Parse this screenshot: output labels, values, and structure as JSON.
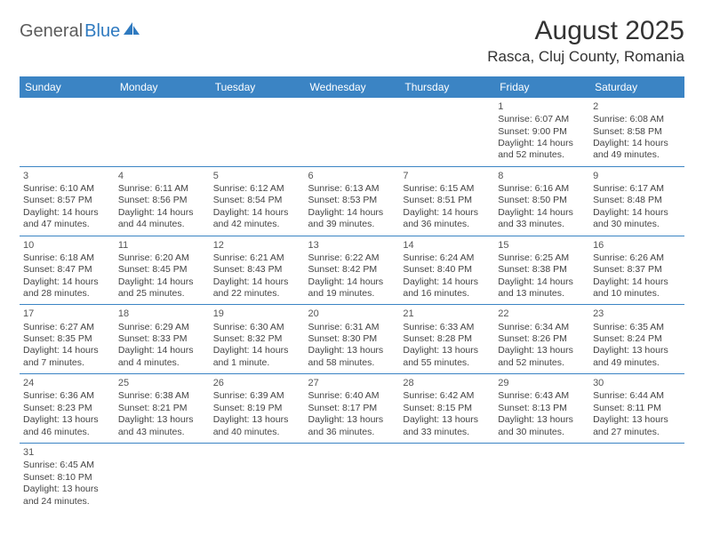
{
  "logo": {
    "part1": "General",
    "part2": "Blue"
  },
  "title": "August 2025",
  "location": "Rasca, Cluj County, Romania",
  "colors": {
    "header_bg": "#3b84c4",
    "header_text": "#ffffff",
    "border": "#3b84c4",
    "logo_gray": "#5c5c5c",
    "logo_blue": "#2f7ac0",
    "body_text": "#444444",
    "title_text": "#333333"
  },
  "typography": {
    "title_fontsize": 30,
    "location_fontsize": 17,
    "dayheader_fontsize": 12,
    "cell_fontsize": 10.5,
    "logo_fontsize": 20
  },
  "day_headers": [
    "Sunday",
    "Monday",
    "Tuesday",
    "Wednesday",
    "Thursday",
    "Friday",
    "Saturday"
  ],
  "weeks": [
    [
      null,
      null,
      null,
      null,
      null,
      {
        "day": "1",
        "sunrise": "Sunrise: 6:07 AM",
        "sunset": "Sunset: 9:00 PM",
        "daylight": "Daylight: 14 hours and 52 minutes."
      },
      {
        "day": "2",
        "sunrise": "Sunrise: 6:08 AM",
        "sunset": "Sunset: 8:58 PM",
        "daylight": "Daylight: 14 hours and 49 minutes."
      }
    ],
    [
      {
        "day": "3",
        "sunrise": "Sunrise: 6:10 AM",
        "sunset": "Sunset: 8:57 PM",
        "daylight": "Daylight: 14 hours and 47 minutes."
      },
      {
        "day": "4",
        "sunrise": "Sunrise: 6:11 AM",
        "sunset": "Sunset: 8:56 PM",
        "daylight": "Daylight: 14 hours and 44 minutes."
      },
      {
        "day": "5",
        "sunrise": "Sunrise: 6:12 AM",
        "sunset": "Sunset: 8:54 PM",
        "daylight": "Daylight: 14 hours and 42 minutes."
      },
      {
        "day": "6",
        "sunrise": "Sunrise: 6:13 AM",
        "sunset": "Sunset: 8:53 PM",
        "daylight": "Daylight: 14 hours and 39 minutes."
      },
      {
        "day": "7",
        "sunrise": "Sunrise: 6:15 AM",
        "sunset": "Sunset: 8:51 PM",
        "daylight": "Daylight: 14 hours and 36 minutes."
      },
      {
        "day": "8",
        "sunrise": "Sunrise: 6:16 AM",
        "sunset": "Sunset: 8:50 PM",
        "daylight": "Daylight: 14 hours and 33 minutes."
      },
      {
        "day": "9",
        "sunrise": "Sunrise: 6:17 AM",
        "sunset": "Sunset: 8:48 PM",
        "daylight": "Daylight: 14 hours and 30 minutes."
      }
    ],
    [
      {
        "day": "10",
        "sunrise": "Sunrise: 6:18 AM",
        "sunset": "Sunset: 8:47 PM",
        "daylight": "Daylight: 14 hours and 28 minutes."
      },
      {
        "day": "11",
        "sunrise": "Sunrise: 6:20 AM",
        "sunset": "Sunset: 8:45 PM",
        "daylight": "Daylight: 14 hours and 25 minutes."
      },
      {
        "day": "12",
        "sunrise": "Sunrise: 6:21 AM",
        "sunset": "Sunset: 8:43 PM",
        "daylight": "Daylight: 14 hours and 22 minutes."
      },
      {
        "day": "13",
        "sunrise": "Sunrise: 6:22 AM",
        "sunset": "Sunset: 8:42 PM",
        "daylight": "Daylight: 14 hours and 19 minutes."
      },
      {
        "day": "14",
        "sunrise": "Sunrise: 6:24 AM",
        "sunset": "Sunset: 8:40 PM",
        "daylight": "Daylight: 14 hours and 16 minutes."
      },
      {
        "day": "15",
        "sunrise": "Sunrise: 6:25 AM",
        "sunset": "Sunset: 8:38 PM",
        "daylight": "Daylight: 14 hours and 13 minutes."
      },
      {
        "day": "16",
        "sunrise": "Sunrise: 6:26 AM",
        "sunset": "Sunset: 8:37 PM",
        "daylight": "Daylight: 14 hours and 10 minutes."
      }
    ],
    [
      {
        "day": "17",
        "sunrise": "Sunrise: 6:27 AM",
        "sunset": "Sunset: 8:35 PM",
        "daylight": "Daylight: 14 hours and 7 minutes."
      },
      {
        "day": "18",
        "sunrise": "Sunrise: 6:29 AM",
        "sunset": "Sunset: 8:33 PM",
        "daylight": "Daylight: 14 hours and 4 minutes."
      },
      {
        "day": "19",
        "sunrise": "Sunrise: 6:30 AM",
        "sunset": "Sunset: 8:32 PM",
        "daylight": "Daylight: 14 hours and 1 minute."
      },
      {
        "day": "20",
        "sunrise": "Sunrise: 6:31 AM",
        "sunset": "Sunset: 8:30 PM",
        "daylight": "Daylight: 13 hours and 58 minutes."
      },
      {
        "day": "21",
        "sunrise": "Sunrise: 6:33 AM",
        "sunset": "Sunset: 8:28 PM",
        "daylight": "Daylight: 13 hours and 55 minutes."
      },
      {
        "day": "22",
        "sunrise": "Sunrise: 6:34 AM",
        "sunset": "Sunset: 8:26 PM",
        "daylight": "Daylight: 13 hours and 52 minutes."
      },
      {
        "day": "23",
        "sunrise": "Sunrise: 6:35 AM",
        "sunset": "Sunset: 8:24 PM",
        "daylight": "Daylight: 13 hours and 49 minutes."
      }
    ],
    [
      {
        "day": "24",
        "sunrise": "Sunrise: 6:36 AM",
        "sunset": "Sunset: 8:23 PM",
        "daylight": "Daylight: 13 hours and 46 minutes."
      },
      {
        "day": "25",
        "sunrise": "Sunrise: 6:38 AM",
        "sunset": "Sunset: 8:21 PM",
        "daylight": "Daylight: 13 hours and 43 minutes."
      },
      {
        "day": "26",
        "sunrise": "Sunrise: 6:39 AM",
        "sunset": "Sunset: 8:19 PM",
        "daylight": "Daylight: 13 hours and 40 minutes."
      },
      {
        "day": "27",
        "sunrise": "Sunrise: 6:40 AM",
        "sunset": "Sunset: 8:17 PM",
        "daylight": "Daylight: 13 hours and 36 minutes."
      },
      {
        "day": "28",
        "sunrise": "Sunrise: 6:42 AM",
        "sunset": "Sunset: 8:15 PM",
        "daylight": "Daylight: 13 hours and 33 minutes."
      },
      {
        "day": "29",
        "sunrise": "Sunrise: 6:43 AM",
        "sunset": "Sunset: 8:13 PM",
        "daylight": "Daylight: 13 hours and 30 minutes."
      },
      {
        "day": "30",
        "sunrise": "Sunrise: 6:44 AM",
        "sunset": "Sunset: 8:11 PM",
        "daylight": "Daylight: 13 hours and 27 minutes."
      }
    ],
    [
      {
        "day": "31",
        "sunrise": "Sunrise: 6:45 AM",
        "sunset": "Sunset: 8:10 PM",
        "daylight": "Daylight: 13 hours and 24 minutes."
      },
      null,
      null,
      null,
      null,
      null,
      null
    ]
  ]
}
